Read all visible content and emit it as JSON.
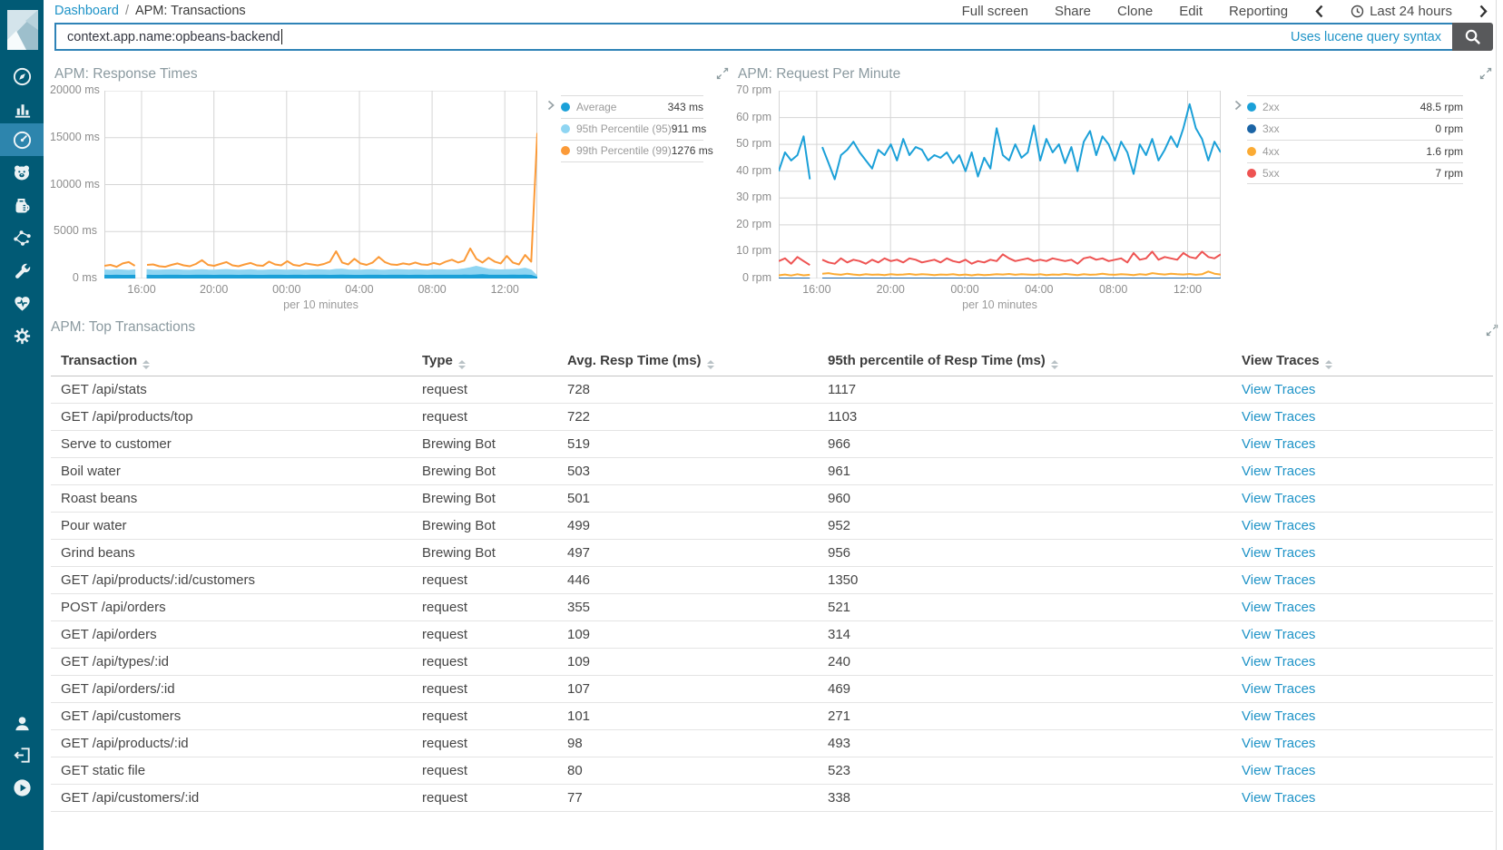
{
  "header": {
    "breadcrumb": {
      "link": "Dashboard",
      "separator": "/",
      "current": "APM: Transactions"
    },
    "menu": {
      "full_screen": "Full screen",
      "share": "Share",
      "clone": "Clone",
      "edit": "Edit",
      "reporting": "Reporting"
    },
    "time_picker": {
      "label": "Last 24 hours",
      "clock_icon": "clock-icon",
      "prev_icon": "chevron-left-icon",
      "next_icon": "chevron-right-icon"
    }
  },
  "search": {
    "value": "context.app.name:opbeans-backend",
    "syntax_hint": "Uses lucene query syntax",
    "button_icon": "search-icon"
  },
  "sidebar": {
    "logo": "kibana-logo",
    "top_icons": [
      {
        "name": "discover-compass-icon",
        "selected": false
      },
      {
        "name": "visualize-bar-chart-icon",
        "selected": false
      },
      {
        "name": "dashboard-gauge-icon",
        "selected": true
      },
      {
        "name": "bear-face-icon",
        "selected": false
      },
      {
        "name": "coffee-pot-icon",
        "selected": false
      },
      {
        "name": "graph-nodes-icon",
        "selected": false
      },
      {
        "name": "dev-tools-wrench-icon",
        "selected": false
      },
      {
        "name": "monitoring-heartbeat-icon",
        "selected": false
      },
      {
        "name": "management-gear-icon",
        "selected": false
      }
    ],
    "bottom_icons": [
      {
        "name": "user-account-icon"
      },
      {
        "name": "logout-icon"
      },
      {
        "name": "collapse-play-icon"
      }
    ]
  },
  "colors": {
    "sidebar_bg": "#015a75",
    "sidebar_selected_bg": "#2d85ad",
    "link_blue": "#1e93c7",
    "average_blue": "#1ba0d8",
    "p95_light_blue": "#8fd5f2",
    "p99_orange": "#fb9a38",
    "status_2xx": "#1ba0d8",
    "status_3xx": "#1b64a5",
    "status_4xx": "#fbab34",
    "status_5xx": "#ee5352"
  },
  "chart_data": [
    {
      "type": "area",
      "title": "APM: Response Times",
      "xlabel": "per 10 minutes",
      "ylabel": "ms",
      "x_ticks": [
        "16:00",
        "20:00",
        "00:00",
        "04:00",
        "08:00",
        "12:00"
      ],
      "y_ticks": [
        "20000 ms",
        "15000 ms",
        "10000 ms",
        "5000 ms",
        "0 ms"
      ],
      "ylim": [
        0,
        20000
      ],
      "grid": true,
      "legend_position": "right",
      "series": [
        {
          "name": "Average",
          "legend_value": "343 ms",
          "color": "#1ba0d8",
          "fill": true,
          "z": 2,
          "values": [
            345,
            338,
            350,
            342,
            336,
            348,
            null,
            352,
            341,
            339,
            345,
            350,
            347,
            342,
            338,
            344,
            349,
            343,
            340,
            346,
            352,
            345,
            339,
            343,
            348,
            342,
            337,
            345,
            350,
            344,
            341,
            347,
            343,
            339,
            346,
            351,
            344,
            340,
            348,
            353,
            345,
            342,
            338,
            346,
            350,
            343,
            341,
            347,
            352,
            346,
            342,
            349,
            344,
            340,
            347,
            351,
            345,
            343,
            350,
            355,
            348,
            380,
            410,
            370,
            352,
            345,
            349,
            354,
            347,
            360,
            340,
            140
          ]
        },
        {
          "name": "95th Percentile (95)",
          "legend_value": "911 ms",
          "color": "#8fd5f2",
          "fill": true,
          "z": 1,
          "values": [
            920,
            880,
            940,
            905,
            870,
            930,
            null,
            950,
            895,
            885,
            915,
            940,
            925,
            900,
            880,
            920,
            945,
            910,
            890,
            925,
            955,
            915,
            885,
            905,
            935,
            900,
            875,
            915,
            945,
            920,
            895,
            930,
            910,
            885,
            920,
            950,
            915,
            895,
            980,
            1000,
            920,
            905,
            885,
            925,
            945,
            910,
            900,
            930,
            955,
            925,
            905,
            940,
            915,
            895,
            930,
            950,
            920,
            910,
            945,
            1020,
            1150,
            1300,
            1150,
            1000,
            950,
            920,
            940,
            960,
            990,
            1100,
            900,
            260
          ]
        },
        {
          "name": "99th Percentile (99)",
          "legend_value": "1276 ms",
          "color": "#fb9a38",
          "fill": false,
          "z": 3,
          "values": [
            1350,
            1450,
            1250,
            1600,
            1750,
            1350,
            null,
            1450,
            1500,
            1300,
            1250,
            1450,
            1600,
            1400,
            1300,
            1550,
            1950,
            1450,
            1350,
            1550,
            1750,
            1400,
            1300,
            1500,
            1650,
            1400,
            1350,
            1800,
            1500,
            1400,
            1850,
            1450,
            1350,
            1600,
            1500,
            1400,
            1550,
            1800,
            2900,
            1700,
            1500,
            2100,
            1600,
            1450,
            1700,
            2300,
            1750,
            1500,
            1450,
            1600,
            1500,
            1700,
            1500,
            1450,
            1650,
            1500,
            1800,
            2000,
            1700,
            1900,
            3200,
            2100,
            1700,
            2200,
            1800,
            1600,
            2400,
            1700,
            1500,
            2500,
            1800,
            15500
          ]
        }
      ]
    },
    {
      "type": "line",
      "title": "APM: Request Per Minute",
      "xlabel": "per 10 minutes",
      "ylabel": "rpm",
      "x_ticks": [
        "16:00",
        "20:00",
        "00:00",
        "04:00",
        "08:00",
        "12:00"
      ],
      "y_ticks": [
        "70 rpm",
        "60 rpm",
        "50 rpm",
        "40 rpm",
        "30 rpm",
        "20 rpm",
        "10 rpm",
        "0 rpm"
      ],
      "ylim": [
        0,
        70
      ],
      "grid": true,
      "legend_position": "right",
      "series": [
        {
          "name": "2xx",
          "legend_value": "48.5 rpm",
          "color": "#1ba0d8",
          "fill": false,
          "z": 4,
          "values": [
            40,
            47,
            44,
            46,
            53,
            37,
            null,
            49,
            43,
            37,
            46,
            48,
            51,
            47,
            44,
            41,
            48,
            46,
            50,
            44,
            52,
            46,
            49,
            48,
            44,
            46,
            45,
            47,
            43,
            46,
            40,
            47,
            38,
            45,
            41,
            56,
            46,
            44,
            50,
            45,
            47,
            57,
            44,
            52,
            47,
            50,
            43,
            49,
            40,
            51,
            55,
            46,
            53,
            50,
            44,
            51,
            47,
            39,
            50,
            46,
            52,
            44,
            48,
            53,
            49,
            56,
            65,
            56,
            52,
            44,
            51,
            47
          ]
        },
        {
          "name": "3xx",
          "legend_value": "0 rpm",
          "color": "#1b64a5",
          "fill": false,
          "z": 1,
          "values": [
            0,
            0,
            0,
            0,
            0,
            0,
            null,
            0,
            0,
            0,
            0,
            0,
            0,
            0,
            0,
            0,
            0,
            0,
            0,
            0,
            0,
            0,
            0,
            0,
            0,
            0,
            0,
            0,
            0,
            0,
            0,
            0,
            0,
            0,
            0,
            0,
            0,
            0,
            0,
            0,
            0,
            0,
            0,
            0,
            0,
            0,
            0,
            0,
            0,
            0,
            0,
            0,
            0,
            0,
            0,
            0,
            0,
            0,
            0,
            0,
            0,
            0,
            0,
            0,
            0,
            0,
            0,
            0,
            0,
            0,
            0,
            0
          ]
        },
        {
          "name": "4xx",
          "legend_value": "1.6 rpm",
          "color": "#fbab34",
          "fill": false,
          "z": 2,
          "values": [
            1.2,
            1.5,
            1.1,
            1.6,
            1.2,
            1.4,
            null,
            1.8,
            2.0,
            1.6,
            1.4,
            1.8,
            1.5,
            1.3,
            1.6,
            1.4,
            1.5,
            1.3,
            1.6,
            1.4,
            1.5,
            1.7,
            1.4,
            1.6,
            1.5,
            1.3,
            1.5,
            1.4,
            1.6,
            1.3,
            1.5,
            1.2,
            1.5,
            1.3,
            1.4,
            1.6,
            1.5,
            1.7,
            1.4,
            1.6,
            1.5,
            1.4,
            1.6,
            1.3,
            1.5,
            1.4,
            1.7,
            1.5,
            1.3,
            1.6,
            1.4,
            1.5,
            1.8,
            1.5,
            1.4,
            1.6,
            1.5,
            1.3,
            1.6,
            1.4,
            2.0,
            1.7,
            1.5,
            1.8,
            1.6,
            1.5,
            1.7,
            1.4,
            1.6,
            2.6,
            1.8,
            1.5
          ]
        },
        {
          "name": "5xx",
          "legend_value": "7 rpm",
          "color": "#ee5352",
          "fill": false,
          "z": 3,
          "values": [
            6.5,
            7.5,
            5.5,
            8,
            6.5,
            5,
            null,
            7,
            6,
            5.5,
            7.5,
            6,
            7,
            6.5,
            5.5,
            7,
            6,
            7.5,
            6.5,
            7,
            6,
            7.5,
            7,
            6,
            6.5,
            7,
            6,
            7.5,
            6.5,
            6,
            7,
            5.5,
            6.5,
            6,
            7,
            6.5,
            9,
            7.5,
            6.5,
            7,
            7.5,
            6.5,
            7,
            6.5,
            7.5,
            7,
            6.5,
            7,
            5.5,
            7.5,
            8,
            7,
            7.5,
            6.5,
            7,
            7.5,
            6,
            9.5,
            7,
            7.5,
            10,
            7,
            8,
            7.5,
            7,
            9.5,
            8,
            7.5,
            10,
            8,
            7.5,
            9
          ]
        }
      ]
    }
  ],
  "table": {
    "title": "APM: Top Transactions",
    "columns": [
      "Transaction",
      "Type",
      "Avg. Resp Time (ms)",
      "95th percentile of Resp Time (ms)",
      "View Traces"
    ],
    "link_label": "View Traces",
    "rows": [
      {
        "transaction": "GET /api/stats",
        "type": "request",
        "avg": "728",
        "p95": "1117"
      },
      {
        "transaction": "GET /api/products/top",
        "type": "request",
        "avg": "722",
        "p95": "1103"
      },
      {
        "transaction": "Serve to customer",
        "type": "Brewing Bot",
        "avg": "519",
        "p95": "966"
      },
      {
        "transaction": "Boil water",
        "type": "Brewing Bot",
        "avg": "503",
        "p95": "961"
      },
      {
        "transaction": "Roast beans",
        "type": "Brewing Bot",
        "avg": "501",
        "p95": "960"
      },
      {
        "transaction": "Pour water",
        "type": "Brewing Bot",
        "avg": "499",
        "p95": "952"
      },
      {
        "transaction": "Grind beans",
        "type": "Brewing Bot",
        "avg": "497",
        "p95": "956"
      },
      {
        "transaction": "GET /api/products/:id/customers",
        "type": "request",
        "avg": "446",
        "p95": "1350"
      },
      {
        "transaction": "POST /api/orders",
        "type": "request",
        "avg": "355",
        "p95": "521"
      },
      {
        "transaction": "GET /api/orders",
        "type": "request",
        "avg": "109",
        "p95": "314"
      },
      {
        "transaction": "GET /api/types/:id",
        "type": "request",
        "avg": "109",
        "p95": "240"
      },
      {
        "transaction": "GET /api/orders/:id",
        "type": "request",
        "avg": "107",
        "p95": "469"
      },
      {
        "transaction": "GET /api/customers",
        "type": "request",
        "avg": "101",
        "p95": "271"
      },
      {
        "transaction": "GET /api/products/:id",
        "type": "request",
        "avg": "98",
        "p95": "493"
      },
      {
        "transaction": "GET static file",
        "type": "request",
        "avg": "80",
        "p95": "523"
      },
      {
        "transaction": "GET /api/customers/:id",
        "type": "request",
        "avg": "77",
        "p95": "338"
      }
    ]
  }
}
